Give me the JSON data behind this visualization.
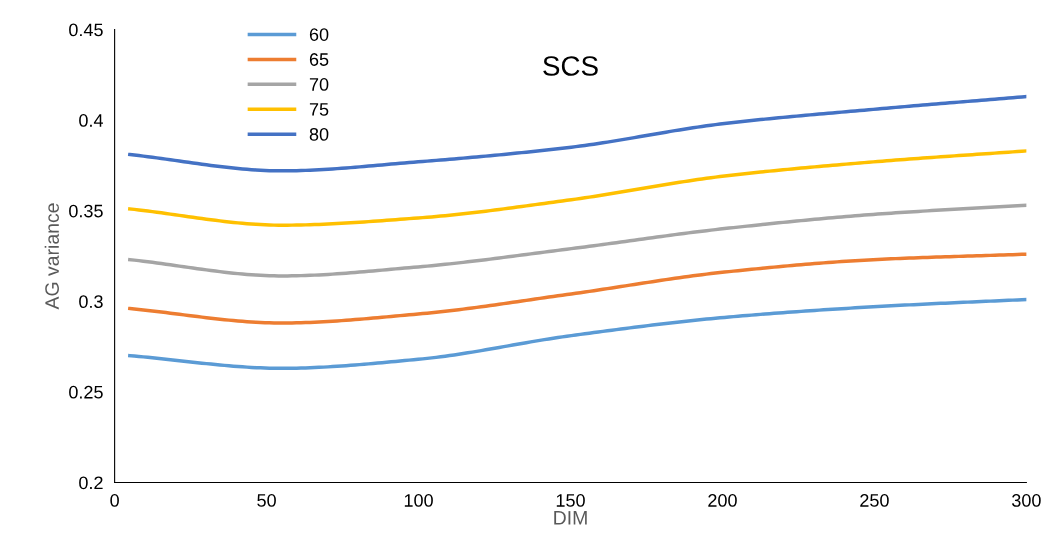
{
  "chart_data": {
    "type": "line",
    "title": "SCS",
    "xlabel": "DIM",
    "ylabel": "AG variance",
    "x": [
      5,
      55,
      100,
      150,
      200,
      250,
      300
    ],
    "series": [
      {
        "name": "60",
        "color": "#5b9bd5",
        "values": [
          0.27,
          0.263,
          0.268,
          0.281,
          0.291,
          0.297,
          0.301
        ]
      },
      {
        "name": "65",
        "color": "#ed7d31",
        "values": [
          0.296,
          0.288,
          0.293,
          0.304,
          0.316,
          0.323,
          0.326
        ]
      },
      {
        "name": "70",
        "color": "#a5a5a5",
        "values": [
          0.323,
          0.314,
          0.319,
          0.329,
          0.34,
          0.348,
          0.353
        ]
      },
      {
        "name": "75",
        "color": "#ffc000",
        "values": [
          0.351,
          0.342,
          0.346,
          0.356,
          0.369,
          0.377,
          0.383
        ]
      },
      {
        "name": "80",
        "color": "#4472c4",
        "values": [
          0.381,
          0.372,
          0.377,
          0.385,
          0.398,
          0.406,
          0.413
        ]
      }
    ],
    "xlim": [
      0,
      300
    ],
    "xticks": [
      0,
      50,
      100,
      150,
      200,
      250,
      300
    ],
    "ylim": [
      0.2,
      0.45
    ],
    "yticks": [
      0.2,
      0.25,
      0.3,
      0.35,
      0.4,
      0.45
    ],
    "grid": false,
    "legend": "top left",
    "marker": "none",
    "line_style": "solid"
  }
}
